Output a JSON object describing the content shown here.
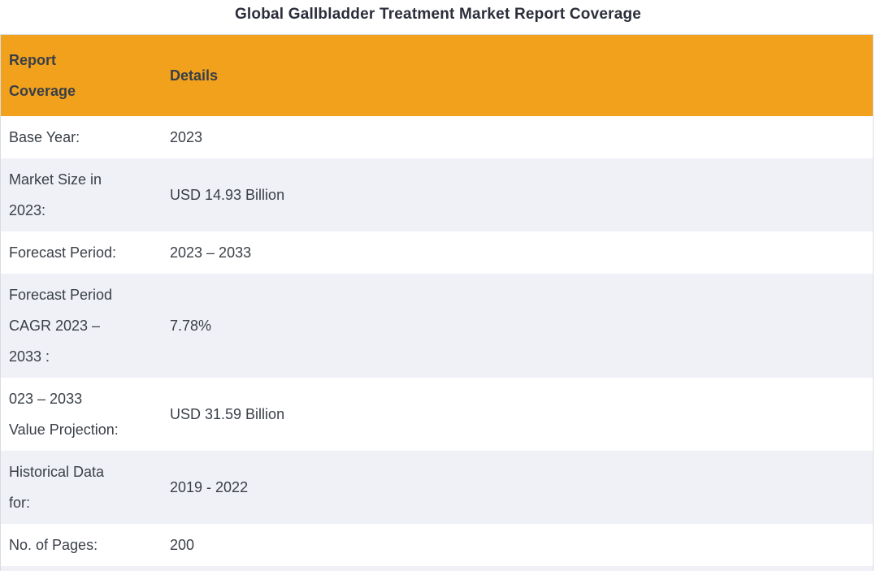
{
  "title": "Global Gallbladder Treatment Market Report Coverage",
  "table": {
    "header": {
      "col1": "Report Coverage",
      "col2": "Details"
    },
    "rows": [
      {
        "label": "Base Year:",
        "value": "2023"
      },
      {
        "label": "Market Size in 2023:",
        "value": "USD 14.93 Billion"
      },
      {
        "label": "Forecast Period:",
        "value": "2023 – 2033"
      },
      {
        "label": "Forecast Period CAGR 2023 – 2033 :",
        "value": "7.78%"
      },
      {
        "label": "023 – 2033 Value Projection:",
        "value": "USD 31.59 Billion"
      },
      {
        "label": "Historical Data for:",
        "value": "2019 - 2022"
      },
      {
        "label": "No. of Pages:",
        "value": "200"
      }
    ]
  },
  "colors": {
    "header_bg": "#F2A11D",
    "row_alt_bg": "#EFF1F6",
    "body_text": "#3A3F47",
    "title_text": "#2B2E3A",
    "border": "#D9DCE1"
  }
}
